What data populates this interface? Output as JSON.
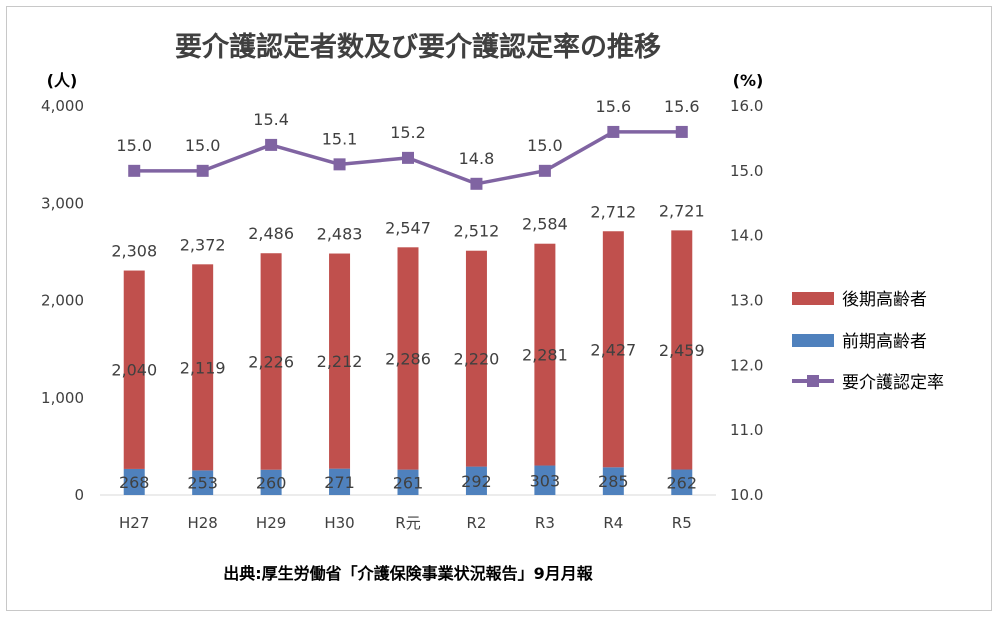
{
  "chart_data": {
    "type": "bar+line",
    "title": "要介護認定者数及び要介護認定率の推移",
    "y_left_unit": "(人)",
    "y_right_unit": "(%)",
    "y_left_range": [
      0,
      4000
    ],
    "y_left_ticks": [
      "0",
      "1,000",
      "2,000",
      "3,000",
      "4,000"
    ],
    "y_right_range": [
      10.0,
      16.0
    ],
    "y_right_ticks": [
      "10.0",
      "11.0",
      "12.0",
      "13.0",
      "14.0",
      "15.0",
      "16.0"
    ],
    "categories": [
      "H27",
      "H28",
      "H29",
      "H30",
      "R元",
      "R2",
      "R3",
      "R4",
      "R5"
    ],
    "series": [
      {
        "name": "前期高齢者",
        "type": "stacked-bar",
        "color": "#4f81bd",
        "values": [
          268,
          253,
          260,
          271,
          261,
          292,
          303,
          285,
          262
        ],
        "labels": [
          "268",
          "253",
          "260",
          "271",
          "261",
          "292",
          "303",
          "285",
          "262"
        ]
      },
      {
        "name": "後期高齢者",
        "type": "stacked-bar",
        "color": "#c0504d",
        "values": [
          2040,
          2119,
          2226,
          2212,
          2286,
          2220,
          2281,
          2427,
          2459
        ],
        "labels": [
          "2,040",
          "2,119",
          "2,226",
          "2,212",
          "2,286",
          "2,220",
          "2,281",
          "2,427",
          "2,459"
        ]
      },
      {
        "name": "要介護認定率",
        "type": "line",
        "axis": "right",
        "color": "#8064a2",
        "values": [
          15.0,
          15.0,
          15.4,
          15.1,
          15.2,
          14.8,
          15.0,
          15.6,
          15.6
        ],
        "labels": [
          "15.0",
          "15.0",
          "15.4",
          "15.1",
          "15.2",
          "14.8",
          "15.0",
          "15.6",
          "15.6"
        ]
      }
    ],
    "totals": [
      2308,
      2372,
      2486,
      2483,
      2547,
      2512,
      2584,
      2712,
      2721
    ],
    "total_labels": [
      "2,308",
      "2,372",
      "2,486",
      "2,483",
      "2,547",
      "2,512",
      "2,584",
      "2,712",
      "2,721"
    ],
    "legend": [
      {
        "name": "後期高齢者",
        "color": "#c0504d",
        "shape": "rect"
      },
      {
        "name": "前期高齢者",
        "color": "#4f81bd",
        "shape": "rect"
      },
      {
        "name": "要介護認定率",
        "color": "#8064a2",
        "shape": "line-marker"
      }
    ],
    "legend_placement": "right",
    "grid": false
  },
  "source_note": "出典:厚生労働省「介護保険事業状況報告」9月月報"
}
